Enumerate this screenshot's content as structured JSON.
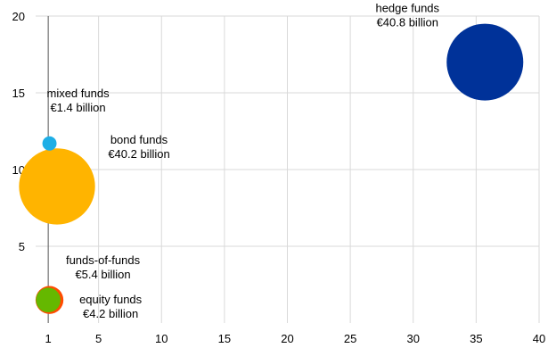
{
  "chart_data": {
    "type": "bubble",
    "title": "",
    "xlabel": "",
    "ylabel": "",
    "xlim": [
      0,
      40
    ],
    "ylim": [
      0,
      20
    ],
    "x_ticks": [
      1,
      5,
      10,
      15,
      20,
      25,
      30,
      35,
      40
    ],
    "y_ticks": [
      5,
      10,
      15,
      20
    ],
    "grid": true,
    "legend": "none",
    "series": [
      {
        "name": "hedge funds",
        "value_label": "€40.8 billion",
        "x": 35.7,
        "y": 17.0,
        "size": 40.8,
        "color": "#003299"
      },
      {
        "name": "mixed funds",
        "value_label": "€1.4 billion",
        "x": 1.1,
        "y": 11.7,
        "size": 1.4,
        "color": "#1eaee6"
      },
      {
        "name": "bond funds",
        "value_label": "€40.2 billion",
        "x": 1.7,
        "y": 8.9,
        "size": 40.2,
        "color": "#ffb400"
      },
      {
        "name": "funds-of-funds",
        "value_label": "€5.4 billion",
        "x": 1.1,
        "y": 1.5,
        "size": 5.4,
        "color": "#ff4b00"
      },
      {
        "name": "equity funds",
        "value_label": "€4.2 billion",
        "x": 1.0,
        "y": 1.5,
        "size": 4.2,
        "color": "#65b800"
      }
    ]
  }
}
